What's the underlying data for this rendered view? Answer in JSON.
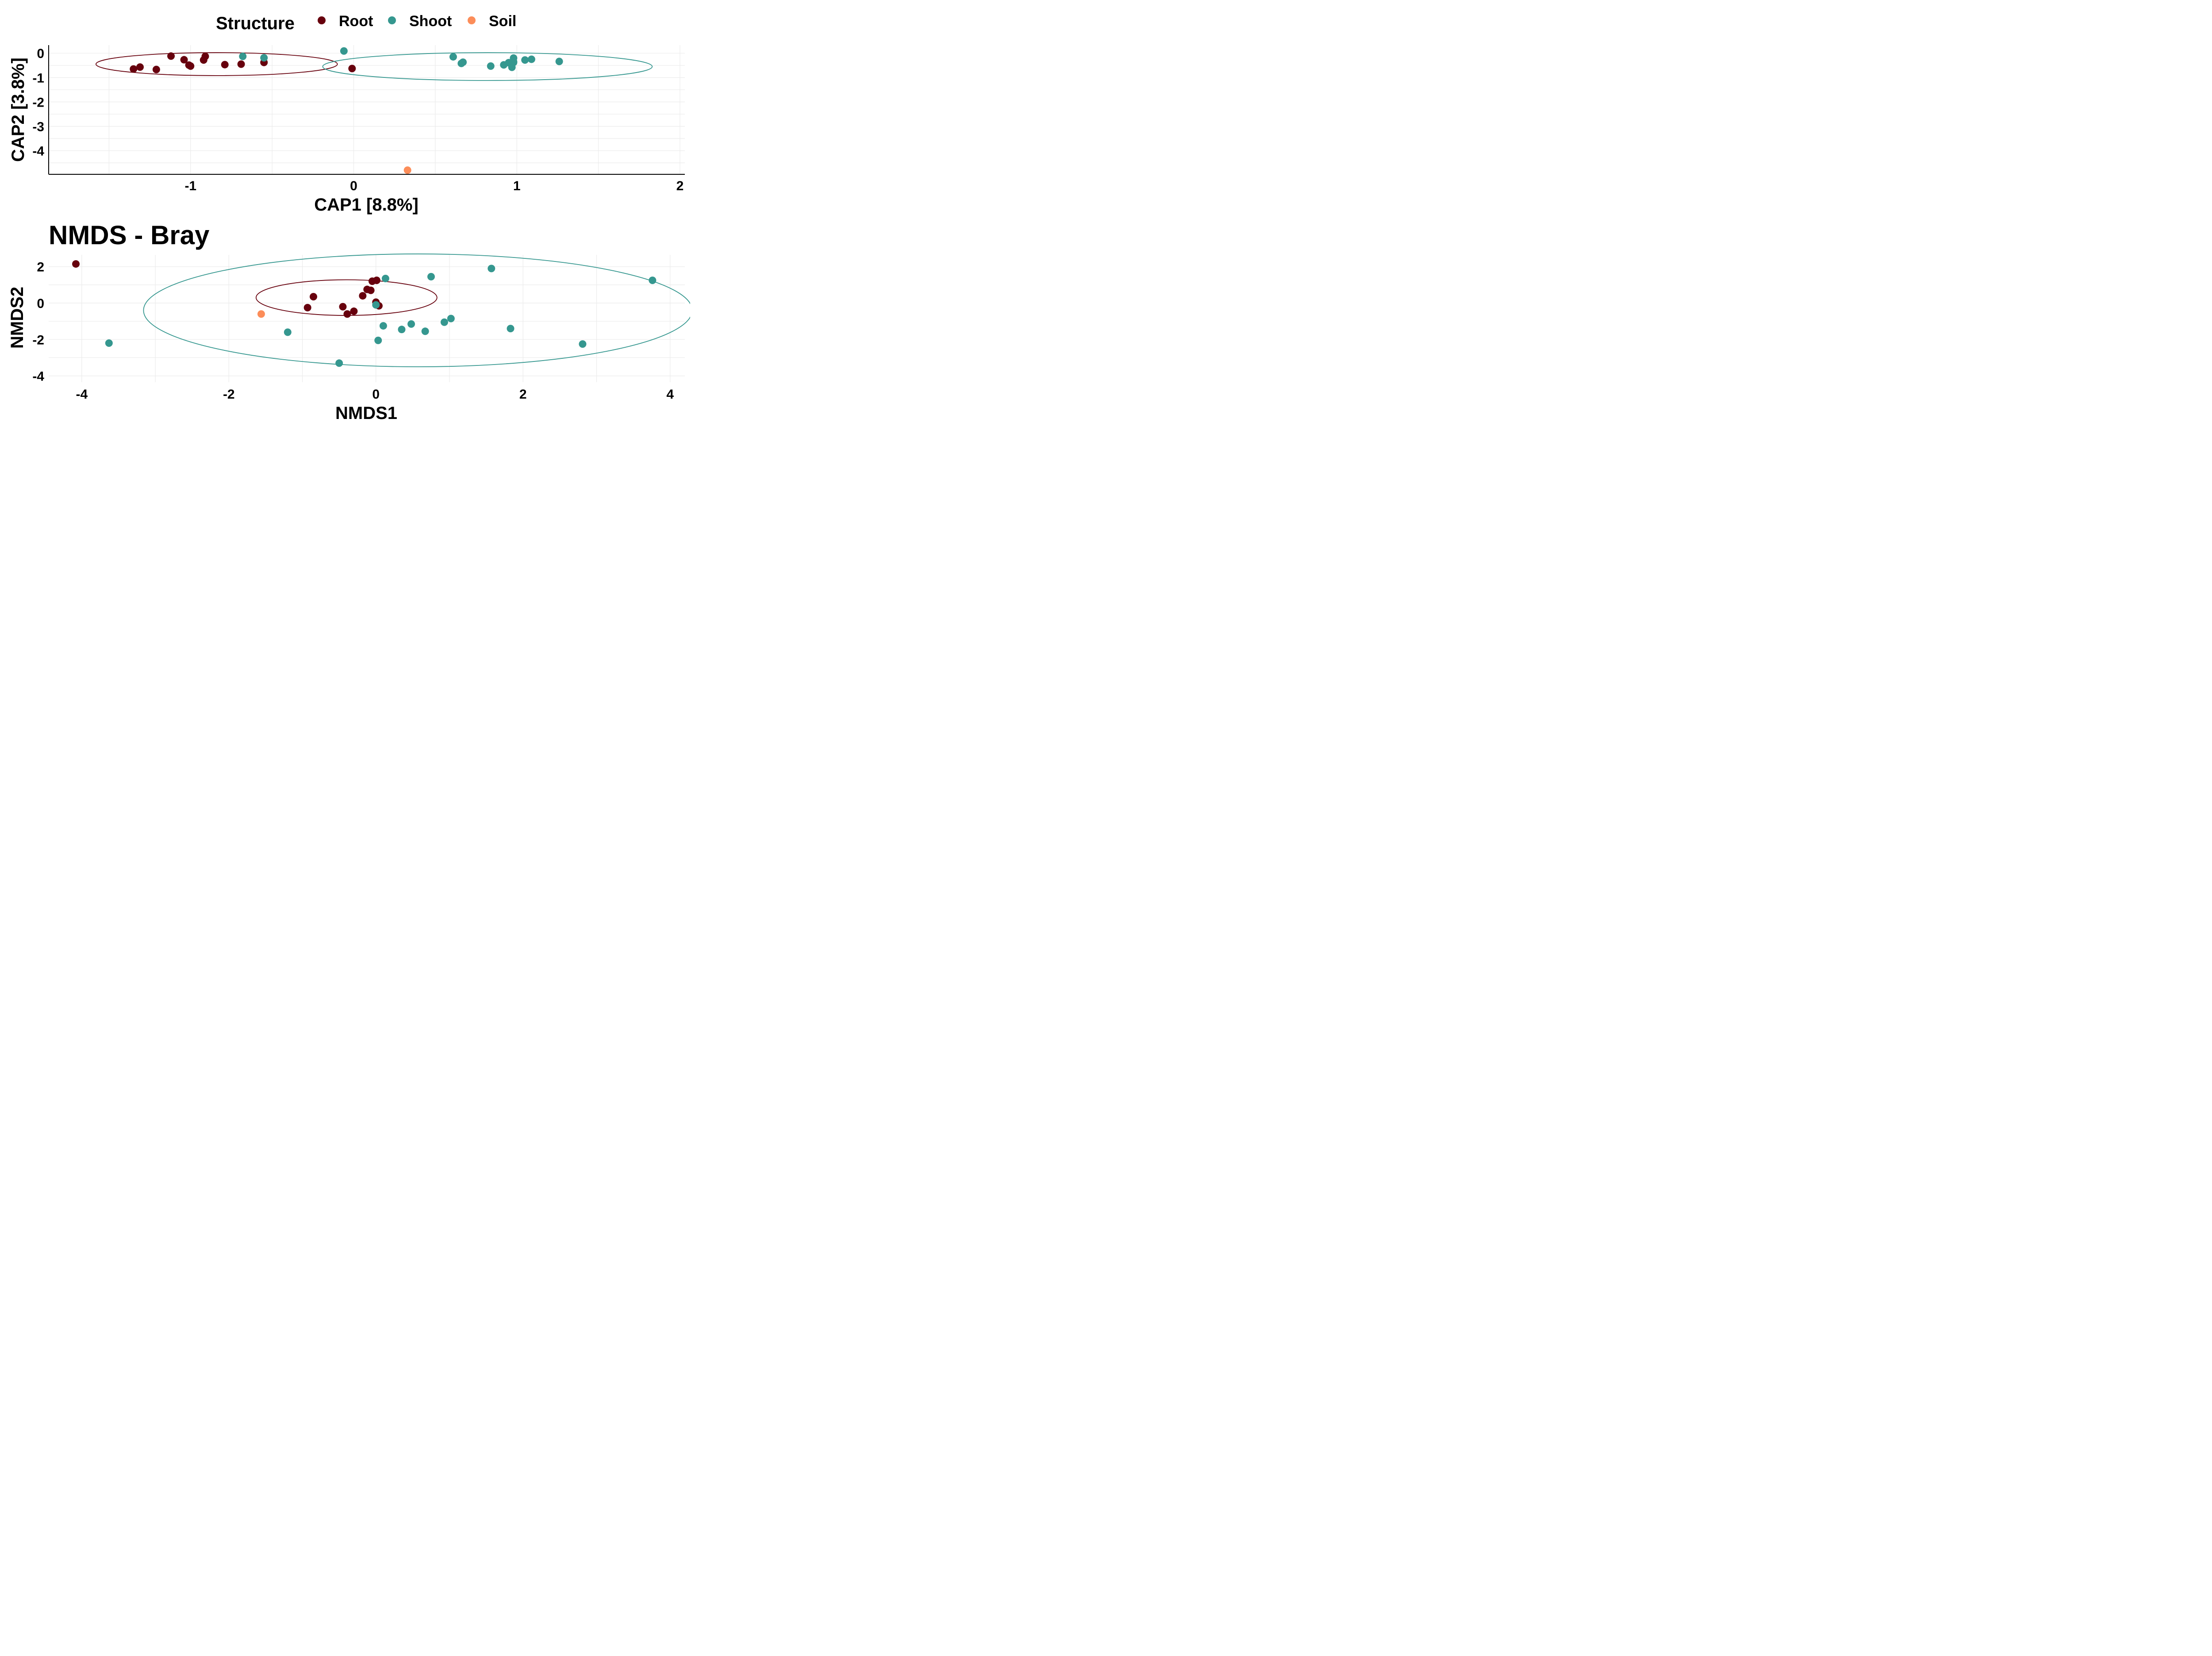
{
  "legend": {
    "title": "Structure",
    "items": [
      {
        "label": "Root",
        "color": "#67000D"
      },
      {
        "label": "Shoot",
        "color": "#35978F"
      },
      {
        "label": "Soil",
        "color": "#FC8D59"
      }
    ]
  },
  "chart_data": [
    {
      "type": "scatter",
      "title": "",
      "xlabel": "CAP1   [8.8%]",
      "ylabel": "CAP2   [3.8%]",
      "xlim": [
        -1.87,
        2.03
      ],
      "ylim": [
        -4.97,
        0.33
      ],
      "xticks": [
        -1,
        0,
        1,
        2
      ],
      "xtick_labels": [
        "-1",
        "0",
        "1",
        "2"
      ],
      "yticks": [
        0,
        -1,
        -2,
        -3,
        -4
      ],
      "ytick_labels": [
        "0",
        "-1",
        "-2",
        "-3",
        "-4"
      ],
      "grid": true,
      "legend_position": "top",
      "series": [
        {
          "name": "Root",
          "color": "#67000D",
          "x": [
            -1.35,
            -1.31,
            -1.21,
            -1.12,
            -1.04,
            -1.01,
            -1.0,
            -0.92,
            -0.91,
            -0.79,
            -0.69,
            -0.55,
            -0.01
          ],
          "y": [
            -0.65,
            -0.57,
            -0.67,
            -0.12,
            -0.27,
            -0.49,
            -0.53,
            -0.28,
            -0.13,
            -0.47,
            -0.45,
            -0.38,
            -0.63
          ]
        },
        {
          "name": "Shoot",
          "color": "#35978F",
          "x": [
            -0.68,
            -0.55,
            -0.06,
            0.61,
            0.66,
            0.67,
            0.84,
            0.92,
            0.95,
            0.97,
            0.98,
            0.98,
            0.98,
            1.05,
            1.09,
            1.26
          ],
          "y": [
            -0.13,
            -0.19,
            0.09,
            -0.15,
            -0.42,
            -0.37,
            -0.53,
            -0.48,
            -0.39,
            -0.58,
            -0.38,
            -0.2,
            -0.35,
            -0.28,
            -0.25,
            -0.34
          ]
        },
        {
          "name": "Soil",
          "color": "#FC8D59",
          "x": [
            0.33
          ],
          "y": [
            -4.8
          ]
        }
      ],
      "ellipses": [
        {
          "group": "Root",
          "color": "#67000D",
          "center": [
            -0.84,
            -0.45
          ],
          "radii": [
            0.74,
            0.47
          ]
        },
        {
          "group": "Shoot",
          "color": "#35978F",
          "center": [
            0.82,
            -0.55
          ],
          "radii": [
            1.01,
            0.57
          ]
        }
      ]
    },
    {
      "type": "scatter",
      "title": "NMDS - Bray",
      "xlabel": "NMDS1",
      "ylabel": "NMDS2",
      "xlim": [
        -4.45,
        4.2
      ],
      "ylim": [
        -4.35,
        2.65
      ],
      "xticks": [
        -4,
        -2,
        0,
        2,
        4
      ],
      "xtick_labels": [
        "-4",
        "-2",
        "0",
        "2",
        "4"
      ],
      "yticks": [
        2,
        0,
        -2,
        -4
      ],
      "ytick_labels": [
        "2",
        "0",
        "-2",
        "-4"
      ],
      "grid": true,
      "series": [
        {
          "name": "Root",
          "color": "#67000D",
          "x": [
            -4.08,
            -0.85,
            -0.93,
            -0.45,
            -0.3,
            -0.39,
            -0.18,
            -0.12,
            -0.07,
            -0.05,
            0.0,
            0.01,
            0.04
          ],
          "y": [
            2.15,
            0.35,
            -0.25,
            -0.2,
            -0.45,
            -0.6,
            0.4,
            0.75,
            0.7,
            1.2,
            0.05,
            1.25,
            -0.15
          ]
        },
        {
          "name": "Shoot",
          "color": "#35978F",
          "x": [
            -3.63,
            -1.2,
            -0.5,
            0.0,
            0.03,
            0.1,
            0.13,
            0.35,
            0.48,
            0.67,
            0.75,
            0.93,
            1.02,
            1.57,
            1.83,
            2.81,
            3.76
          ],
          "y": [
            -2.2,
            -1.6,
            -3.3,
            -0.1,
            -2.05,
            -1.25,
            1.35,
            -1.45,
            -1.15,
            -1.55,
            1.45,
            -1.05,
            -0.85,
            1.9,
            -1.4,
            -2.25,
            1.25
          ]
        },
        {
          "name": "Soil",
          "color": "#FC8D59",
          "x": [
            -1.56
          ],
          "y": [
            -0.6
          ]
        }
      ],
      "ellipses": [
        {
          "group": "Root",
          "color": "#67000D",
          "center": [
            -0.4,
            0.3
          ],
          "radii": [
            1.23,
            0.98
          ]
        },
        {
          "group": "Shoot",
          "color": "#35978F",
          "center": [
            0.57,
            -0.4
          ],
          "radii": [
            3.73,
            3.1
          ]
        }
      ]
    }
  ]
}
